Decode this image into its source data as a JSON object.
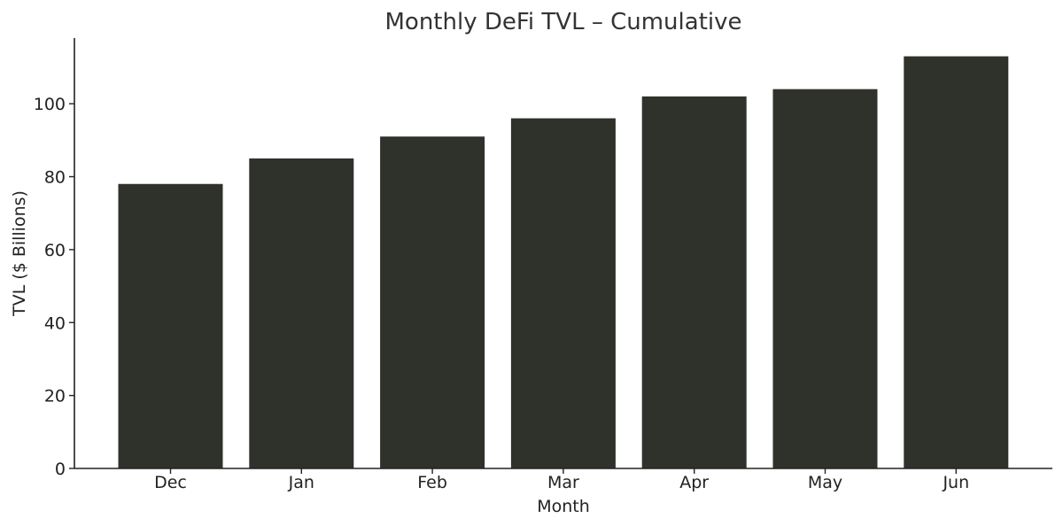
{
  "chart_data": {
    "type": "bar",
    "title": "Monthly DeFi TVL – Cumulative",
    "xlabel": "Month",
    "ylabel": "TVL ($ Billions)",
    "categories": [
      "Dec",
      "Jan",
      "Feb",
      "Mar",
      "Apr",
      "May",
      "Jun"
    ],
    "values": [
      78,
      85,
      91,
      96,
      102,
      104,
      113
    ],
    "ylim": [
      0,
      118
    ],
    "yticks": [
      0,
      20,
      40,
      60,
      80,
      100
    ],
    "grid": false,
    "bar_color": "#2f312b",
    "axis_color": "#222222"
  }
}
